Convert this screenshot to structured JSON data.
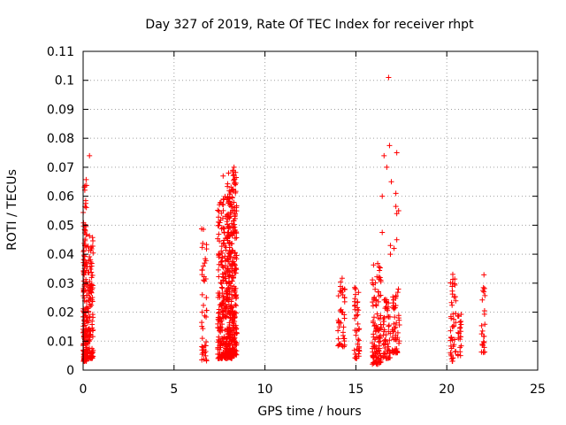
{
  "chart_data": {
    "type": "scatter",
    "title": "Day 327 of 2019, Rate Of TEC Index for receiver rhpt",
    "xlabel": "GPS time / hours",
    "ylabel": "ROTI / TECUs",
    "xlim": [
      0,
      25
    ],
    "ylim": [
      0,
      0.11
    ],
    "x_ticks": [
      "0",
      "5",
      "10",
      "15",
      "20",
      "25"
    ],
    "y_ticks": [
      "0",
      "0.01",
      "0.02",
      "0.03",
      "0.04",
      "0.05",
      "0.06",
      "0.07",
      "0.08",
      "0.09",
      "0.1",
      "0.11"
    ],
    "grid": true,
    "marker": "+",
    "series_color": "#ff0000",
    "clusters": [
      {
        "x": [
          0.0,
          0.2
        ],
        "y": [
          0.003,
          0.066
        ],
        "n": 160
      },
      {
        "x": [
          0.2,
          0.55
        ],
        "y": [
          0.004,
          0.048
        ],
        "n": 120
      },
      {
        "x": [
          6.5,
          6.8
        ],
        "y": [
          0.003,
          0.05
        ],
        "n": 45
      },
      {
        "x": [
          7.4,
          7.9
        ],
        "y": [
          0.004,
          0.06
        ],
        "n": 200
      },
      {
        "x": [
          7.9,
          8.2
        ],
        "y": [
          0.004,
          0.065
        ],
        "n": 220
      },
      {
        "x": [
          8.2,
          8.45
        ],
        "y": [
          0.005,
          0.069
        ],
        "n": 160
      },
      {
        "x": [
          14.0,
          14.4
        ],
        "y": [
          0.008,
          0.032
        ],
        "n": 45
      },
      {
        "x": [
          14.9,
          15.2
        ],
        "y": [
          0.004,
          0.03
        ],
        "n": 45
      },
      {
        "x": [
          15.9,
          16.4
        ],
        "y": [
          0.002,
          0.037
        ],
        "n": 110
      },
      {
        "x": [
          16.5,
          16.9
        ],
        "y": [
          0.004,
          0.025
        ],
        "n": 55
      },
      {
        "x": [
          17.0,
          17.4
        ],
        "y": [
          0.006,
          0.028
        ],
        "n": 55
      },
      {
        "x": [
          20.2,
          20.5
        ],
        "y": [
          0.003,
          0.034
        ],
        "n": 45
      },
      {
        "x": [
          20.6,
          20.8
        ],
        "y": [
          0.005,
          0.02
        ],
        "n": 22
      },
      {
        "x": [
          21.9,
          22.1
        ],
        "y": [
          0.006,
          0.034
        ],
        "n": 25
      }
    ],
    "extra_points": [
      {
        "x": 0.35,
        "y": 0.074
      },
      {
        "x": 16.8,
        "y": 0.101
      },
      {
        "x": 16.85,
        "y": 0.0775
      },
      {
        "x": 17.25,
        "y": 0.075
      },
      {
        "x": 16.55,
        "y": 0.074
      },
      {
        "x": 16.7,
        "y": 0.07
      },
      {
        "x": 16.45,
        "y": 0.06
      },
      {
        "x": 16.95,
        "y": 0.065
      },
      {
        "x": 17.2,
        "y": 0.061
      },
      {
        "x": 17.2,
        "y": 0.0565
      },
      {
        "x": 17.35,
        "y": 0.055
      },
      {
        "x": 17.25,
        "y": 0.054
      },
      {
        "x": 16.45,
        "y": 0.0475
      },
      {
        "x": 17.25,
        "y": 0.045
      },
      {
        "x": 16.9,
        "y": 0.043
      },
      {
        "x": 17.1,
        "y": 0.042
      },
      {
        "x": 16.9,
        "y": 0.04
      },
      {
        "x": 7.7,
        "y": 0.067
      },
      {
        "x": 8.3,
        "y": 0.07
      },
      {
        "x": 8.0,
        "y": 0.068
      }
    ]
  }
}
